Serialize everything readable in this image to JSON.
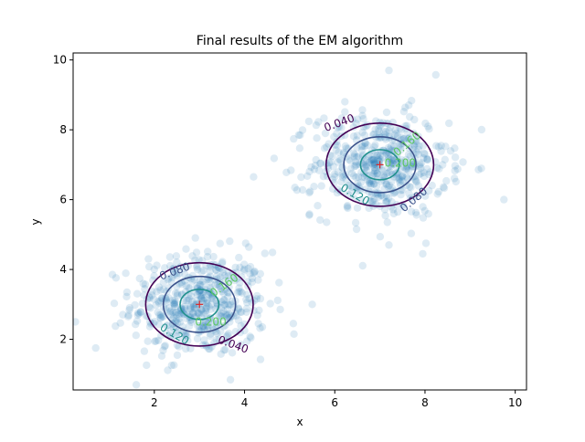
{
  "chart_data": {
    "type": "scatter",
    "title": "Final results of the EM algorithm",
    "xlabel": "x",
    "ylabel": "y",
    "xlim": [
      0.2,
      10.25
    ],
    "ylim": [
      0.55,
      10.2
    ],
    "x_ticks": [
      2,
      4,
      6,
      8,
      10
    ],
    "y_ticks": [
      2,
      4,
      6,
      8,
      10
    ],
    "x_tick_labels": [
      "2",
      "4",
      "6",
      "8",
      "10"
    ],
    "y_tick_labels": [
      "2",
      "4",
      "6",
      "8",
      "10"
    ],
    "grid": false,
    "legend": "none",
    "scatter": {
      "color": "#1f77b4",
      "alpha": 0.15,
      "clusters": [
        {
          "center": [
            3.0,
            3.0
          ],
          "spread": [
            0.75,
            0.75
          ],
          "count": 500
        },
        {
          "center": [
            7.0,
            7.0
          ],
          "spread": [
            0.75,
            0.75
          ],
          "count": 500
        }
      ],
      "outliers": [
        [
          7.2,
          9.7
        ],
        [
          9.75,
          6.0
        ],
        [
          0.7,
          1.75
        ],
        [
          0.25,
          2.5
        ],
        [
          1.6,
          0.7
        ],
        [
          4.2,
          6.65
        ],
        [
          7.2,
          4.7
        ],
        [
          7.95,
          4.45
        ],
        [
          5.5,
          3.0
        ]
      ]
    },
    "means": [
      {
        "x": 3.0,
        "y": 3.0
      },
      {
        "x": 7.0,
        "y": 7.0
      }
    ],
    "mean_marker_color": "#d62728",
    "contours": {
      "levels": [
        0.04,
        0.08,
        0.12,
        0.16,
        0.2,
        0.24
      ],
      "colors": [
        "#440154",
        "#3b528b",
        "#21908d",
        "#21908d",
        "#5dc863",
        "#5dc863"
      ],
      "sigma": 0.75,
      "components": [
        [
          3.0,
          3.0
        ],
        [
          7.0,
          7.0
        ]
      ],
      "labels": [
        {
          "text": "0.080",
          "x": 2.45,
          "y": 3.95,
          "angle": -20,
          "color": "#3b528b"
        },
        {
          "text": "0.160",
          "x": 3.55,
          "y": 3.55,
          "angle": -35,
          "color": "#5dc863"
        },
        {
          "text": "0.120",
          "x": 2.45,
          "y": 2.15,
          "angle": 30,
          "color": "#21908d"
        },
        {
          "text": "0.040",
          "x": 3.75,
          "y": 1.85,
          "angle": 20,
          "color": "#440154"
        },
        {
          "text": "0.200",
          "x": 3.25,
          "y": 2.5,
          "angle": 0,
          "color": "#5dc863"
        },
        {
          "text": "0.040",
          "x": 6.1,
          "y": 8.2,
          "angle": -20,
          "color": "#440154"
        },
        {
          "text": "0.120",
          "x": 6.45,
          "y": 6.15,
          "angle": 30,
          "color": "#21908d"
        },
        {
          "text": "0.080",
          "x": 7.75,
          "y": 6.0,
          "angle": -40,
          "color": "#3b528b"
        },
        {
          "text": "0.160",
          "x": 7.6,
          "y": 7.6,
          "angle": -40,
          "color": "#5dc863"
        },
        {
          "text": "0.200",
          "x": 7.45,
          "y": 7.05,
          "angle": 0,
          "color": "#5dc863"
        }
      ]
    }
  }
}
